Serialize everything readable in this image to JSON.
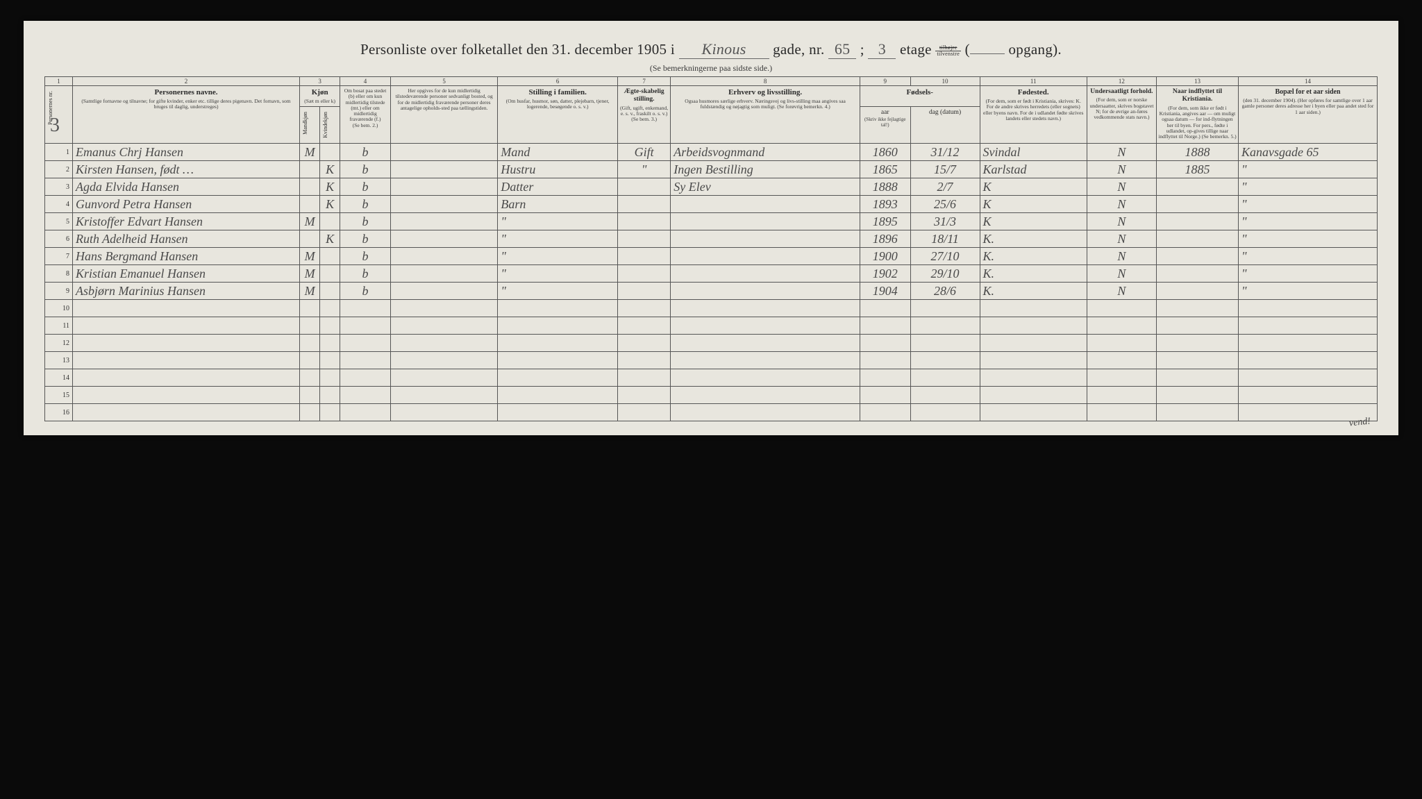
{
  "header": {
    "title_prefix": "Personliste over folketallet den 31. december 1905 i",
    "street_cursive": "Kinous",
    "after_street": "gade, nr.",
    "nr": "65",
    "semicolon": ";",
    "etage_num": "3",
    "etage_word": "etage",
    "frac_top": "tilhøjre",
    "frac_bot": "tilvenstre",
    "opgang": "opgang).",
    "subtitle": "(Se bemerkningerne paa sidste side.)",
    "side_page_num": "3"
  },
  "columns": {
    "nums": [
      "1",
      "2",
      "3",
      "4",
      "5",
      "6",
      "7",
      "8",
      "9",
      "10",
      "11",
      "12",
      "13",
      "14"
    ],
    "c1": "Personernes nr.",
    "c2_main": "Personernes navne.",
    "c2_sub": "(Samtlige fornavne og tilnavne; for gifte kvinder, enker etc. tillige deres pigenavn. Det fornavn, som bruges til daglig, understreges)",
    "c3_main": "Kjøn",
    "c3_sub": "(Sæt m eller k)",
    "c3a": "Mandkjøn",
    "c3b": "Kvindekjøn",
    "c4_main": "Om bosat paa stedet (b) eller om kun midlertidig tilstede (mt.) eller om midlertidig fraværende (f.)",
    "c4_sub": "(Se bem. 2.)",
    "c5_main": "Her opgives for de kun midlertidig tilstedeværende personer sedvanligt bosted, og for de midlertidig fraværende personer deres antagelige opholds-sted paa tællingstiden.",
    "c6_main": "Stilling i familien.",
    "c6_sub": "(Om husfar, husmor, søn, datter, plejebarn, tjener, logerende, besøgende o. s. v.)",
    "c7_main": "Ægte-skabelig stilling.",
    "c7_sub": "(Gift, ugift, enkemand, e. s. v., fraskilt o. s. v.) (Se bem. 3.)",
    "c8_main": "Erhverv og livsstilling.",
    "c8_sub": "Ogsaa husmores særlige erhverv. Næringsvej og livs-stilling maa angives saa fuldstændig og nøjagtig som muligt. (Se forøvrig bemerkn. 4.)",
    "c9_10_main": "Fødsels-",
    "c9": "aar",
    "c10": "dag (datum)",
    "c9_10_sub": "(Skriv ikke fejlagtige tal!)",
    "c11_main": "Fødested.",
    "c11_sub": "(For dem, som er født i Kristiania, skrives: K. For de andre skrives herredets (eller sognets) eller byens navn. For de i udlandet fødte skrives landets eller stedets navn.)",
    "c12_main": "Undersaatligt forhold.",
    "c12_sub": "(For dem, som er norske undersaatter, skrives bogstavet N; for de øvrige an-føres vedkommende stats navn.)",
    "c13_main": "Naar indflyttet til Kristiania.",
    "c13_sub": "(For dem, som ikke er født i Kristiania, angives aar — om muligt ogsaa datum — for ind-flytningen her til byen. For pers., fødte i udlandet, op-gives tillige naar indflyttet til Norge.) (Se bemerkn. 5.)",
    "c14_main": "Bopæl for et aar siden",
    "c14_sub": "(den 31. december 1904). (Her opføres for samtlige over 1 aar gamle personer deres adresse her i byen eller paa andet sted for 1 aar siden.)"
  },
  "rows": [
    {
      "n": "1",
      "name": "Emanus Chrj Hansen",
      "sex": "M",
      "bos": "b",
      "fam": "Mand",
      "aeg": "Gift",
      "erv": "Arbeidsvognmand",
      "aar": "1860",
      "dag": "31/12",
      "fsted": "Svindal",
      "und": "N",
      "indf": "1888",
      "bopael": "Kanavsgade 65"
    },
    {
      "n": "2",
      "name": "Kirsten Hansen, født …",
      "sex": "K",
      "bos": "b",
      "fam": "Hustru",
      "aeg": "\"",
      "erv": "Ingen Bestilling",
      "aar": "1865",
      "dag": "15/7",
      "fsted": "Karlstad",
      "und": "N",
      "indf": "1885",
      "bopael": "\""
    },
    {
      "n": "3",
      "name": "Agda Elvida Hansen",
      "sex": "K",
      "bos": "b",
      "fam": "Datter",
      "aeg": "",
      "erv": "Sy Elev",
      "aar": "1888",
      "dag": "2/7",
      "fsted": "K",
      "und": "N",
      "indf": "",
      "bopael": "\""
    },
    {
      "n": "4",
      "name": "Gunvord Petra Hansen",
      "sex": "K",
      "bos": "b",
      "fam": "Barn",
      "aeg": "",
      "erv": "",
      "aar": "1893",
      "dag": "25/6",
      "fsted": "K",
      "und": "N",
      "indf": "",
      "bopael": "\""
    },
    {
      "n": "5",
      "name": "Kristoffer Edvart Hansen",
      "sex": "M",
      "bos": "b",
      "fam": "\"",
      "aeg": "",
      "erv": "",
      "aar": "1895",
      "dag": "31/3",
      "fsted": "K",
      "und": "N",
      "indf": "",
      "bopael": "\""
    },
    {
      "n": "6",
      "name": "Ruth Adelheid Hansen",
      "sex": "K",
      "bos": "b",
      "fam": "\"",
      "aeg": "",
      "erv": "",
      "aar": "1896",
      "dag": "18/11",
      "fsted": "K.",
      "und": "N",
      "indf": "",
      "bopael": "\""
    },
    {
      "n": "7",
      "name": "Hans Bergmand Hansen",
      "sex": "M",
      "bos": "b",
      "fam": "\"",
      "aeg": "",
      "erv": "",
      "aar": "1900",
      "dag": "27/10",
      "fsted": "K.",
      "und": "N",
      "indf": "",
      "bopael": "\""
    },
    {
      "n": "8",
      "name": "Kristian Emanuel Hansen",
      "sex": "M",
      "bos": "b",
      "fam": "\"",
      "aeg": "",
      "erv": "",
      "aar": "1902",
      "dag": "29/10",
      "fsted": "K.",
      "und": "N",
      "indf": "",
      "bopael": "\""
    },
    {
      "n": "9",
      "name": "Asbjørn Marinius Hansen",
      "sex": "M",
      "bos": "b",
      "fam": "\"",
      "aeg": "",
      "erv": "",
      "aar": "1904",
      "dag": "28/6",
      "fsted": "K.",
      "und": "N",
      "indf": "",
      "bopael": "\""
    }
  ],
  "empty_rows": [
    "10",
    "11",
    "12",
    "13",
    "14",
    "15",
    "16"
  ],
  "vend": "vend!",
  "colors": {
    "paper": "#e8e6de",
    "ink": "#2a2a2a",
    "rule": "#555555",
    "handwriting": "#4a4a4a",
    "background": "#0a0a0a"
  },
  "col_widths_pct": [
    2.2,
    18,
    1.6,
    1.6,
    4,
    8.5,
    9.5,
    4.2,
    15,
    4,
    5.5,
    8.5,
    5.5,
    6.5,
    11
  ]
}
